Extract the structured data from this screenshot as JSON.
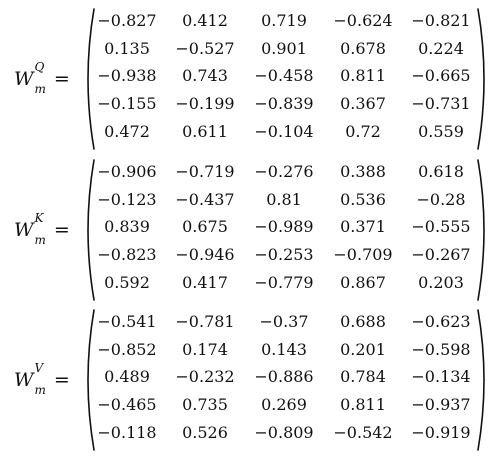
{
  "matrices": [
    {
      "symbol": "W",
      "superscript": "Q",
      "subscript": "m",
      "equals": "=",
      "rows": [
        [
          "−0.827",
          "0.412",
          "0.719",
          "−0.624",
          "−0.821"
        ],
        [
          "0.135",
          "−0.527",
          "0.901",
          "0.678",
          "0.224"
        ],
        [
          "−0.938",
          "0.743",
          "−0.458",
          "0.811",
          "−0.665"
        ],
        [
          "−0.155",
          "−0.199",
          "−0.839",
          "0.367",
          "−0.731"
        ],
        [
          "0.472",
          "0.611",
          "−0.104",
          "0.72",
          "0.559"
        ]
      ]
    },
    {
      "symbol": "W",
      "superscript": "K",
      "subscript": "m",
      "equals": "=",
      "rows": [
        [
          "−0.906",
          "−0.719",
          "−0.276",
          "0.388",
          "0.618"
        ],
        [
          "−0.123",
          "−0.437",
          "0.81",
          "0.536",
          "−0.28"
        ],
        [
          "0.839",
          "0.675",
          "−0.989",
          "0.371",
          "−0.555"
        ],
        [
          "−0.823",
          "−0.946",
          "−0.253",
          "−0.709",
          "−0.267"
        ],
        [
          "0.592",
          "0.417",
          "−0.779",
          "0.867",
          "0.203"
        ]
      ]
    },
    {
      "symbol": "W",
      "superscript": "V",
      "subscript": "m",
      "equals": "=",
      "rows": [
        [
          "−0.541",
          "−0.781",
          "−0.37",
          "0.688",
          "−0.623"
        ],
        [
          "−0.852",
          "0.174",
          "0.143",
          "0.201",
          "−0.598"
        ],
        [
          "0.489",
          "−0.232",
          "−0.886",
          "0.784",
          "−0.134"
        ],
        [
          "−0.465",
          "0.735",
          "0.269",
          "0.811",
          "−0.937"
        ],
        [
          "−0.118",
          "0.526",
          "−0.809",
          "−0.542",
          "−0.919"
        ]
      ]
    }
  ]
}
